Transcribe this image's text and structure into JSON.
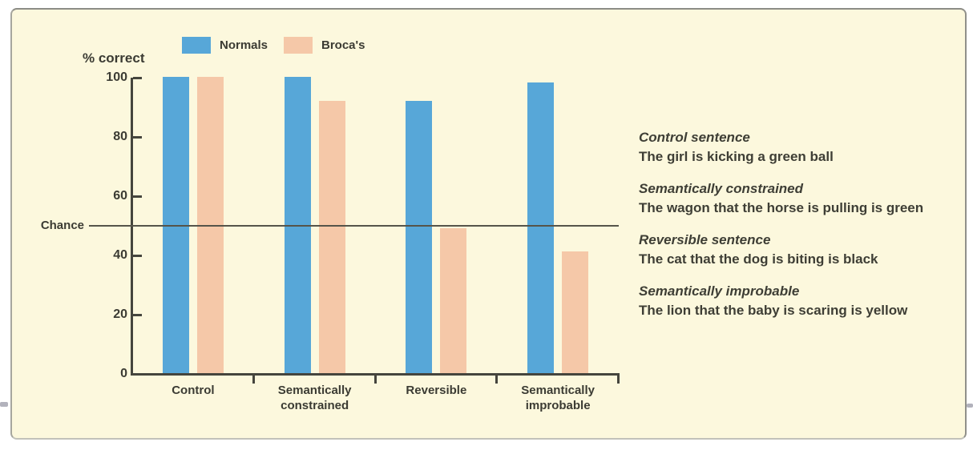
{
  "figure": {
    "background_color": "#fcf8dd",
    "border_color": "#a6a69e"
  },
  "chart_data": {
    "type": "bar",
    "title": "",
    "y_axis_label": "% correct",
    "xlabel": "",
    "ylabel": "% correct",
    "categories": [
      "Control",
      "Semantically\nconstrained",
      "Reversible",
      "Semantically\nimprobable"
    ],
    "series": [
      {
        "name": "Normals",
        "color": "#57a7d8",
        "values": [
          100,
          100,
          92,
          98
        ]
      },
      {
        "name": "Broca's",
        "color": "#f5c8a8",
        "values": [
          100,
          92,
          49,
          41
        ]
      }
    ],
    "ylim": [
      0,
      100
    ],
    "yticks": [
      100,
      80,
      60,
      40,
      20,
      0
    ],
    "reference_line": {
      "label": "Chance",
      "value": 50
    },
    "legend_position": "top",
    "grid": false
  },
  "annotations": [
    {
      "heading": "Control sentence",
      "sentence": "The girl is kicking a green ball"
    },
    {
      "heading": "Semantically constrained",
      "sentence": "The wagon that the horse is pulling is green"
    },
    {
      "heading": "Reversible sentence",
      "sentence": "The cat that the dog is biting is black"
    },
    {
      "heading": "Semantically improbable",
      "sentence": "The lion that the baby is scaring is yellow"
    }
  ]
}
